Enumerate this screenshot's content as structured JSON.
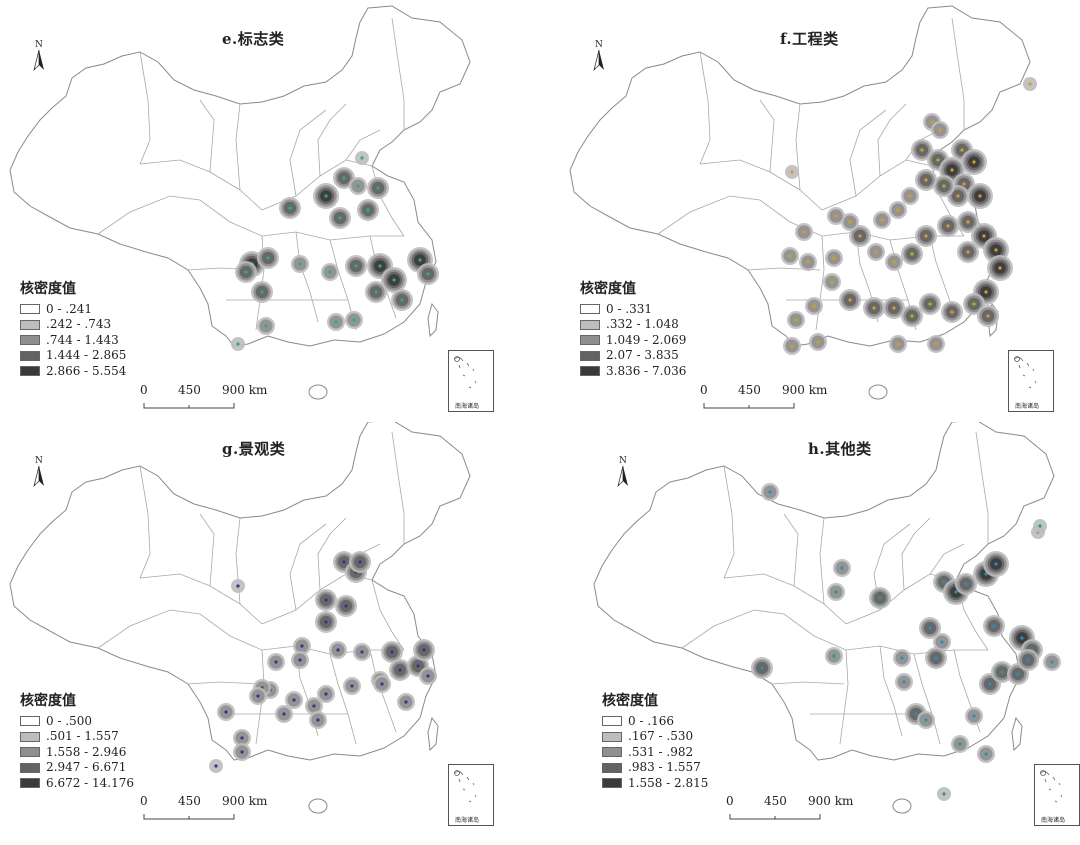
{
  "colors": {
    "border": "#8a8a8a",
    "land": "#ffffff",
    "density": [
      "#ffffff",
      "#bdbdbd",
      "#8f8f8f",
      "#636363",
      "#3a3a3a"
    ],
    "dot_e": "#2aa6a6",
    "dot_f": "#c9a227",
    "dot_g": "#2b3a8c",
    "dot_h": "#2a8fb0"
  },
  "panels": [
    {
      "id": "e",
      "title": "e.标志类",
      "legend_title": "核密度值",
      "legend": [
        {
          "label": "0 - .241"
        },
        {
          "label": ".242 - .743"
        },
        {
          "label": ".744 - 1.443"
        },
        {
          "label": "1.444 - 2.865"
        },
        {
          "label": "2.866 - 5.554"
        }
      ],
      "scale": {
        "ticks": [
          "0",
          "450",
          "900 km"
        ]
      },
      "north": "N",
      "inset_label": "南海诸岛",
      "hotspot_level": "medium"
    },
    {
      "id": "f",
      "title": "f.工程类",
      "legend_title": "核密度值",
      "legend": [
        {
          "label": "0 - .331"
        },
        {
          "label": ".332 - 1.048"
        },
        {
          "label": "1.049 - 2.069"
        },
        {
          "label": "2.07 - 3.835"
        },
        {
          "label": "3.836 - 7.036"
        }
      ],
      "scale": {
        "ticks": [
          "0",
          "450",
          "900 km"
        ]
      },
      "north": "N",
      "inset_label": "南海诸岛",
      "hotspot_level": "high"
    },
    {
      "id": "g",
      "title": "g.景观类",
      "legend_title": "核密度值",
      "legend": [
        {
          "label": "0 - .500"
        },
        {
          "label": ".501 - 1.557"
        },
        {
          "label": "1.558 - 2.946"
        },
        {
          "label": "2.947 - 6.671"
        },
        {
          "label": "6.672 - 14.176"
        }
      ],
      "scale": {
        "ticks": [
          "0",
          "450",
          "900 km"
        ]
      },
      "north": "N",
      "inset_label": "南海诸岛",
      "hotspot_level": "low"
    },
    {
      "id": "h",
      "title": "h.其他类",
      "legend_title": "核密度值",
      "legend": [
        {
          "label": "0 - .166"
        },
        {
          "label": ".167 - .530"
        },
        {
          "label": ".531 - .982"
        },
        {
          "label": ".983 - 1.557"
        },
        {
          "label": "1.558 - 2.815"
        }
      ],
      "scale": {
        "ticks": [
          "0",
          "450",
          "900 km"
        ]
      },
      "north": "N",
      "inset_label": "南海诸岛",
      "hotspot_level": "medium"
    }
  ]
}
